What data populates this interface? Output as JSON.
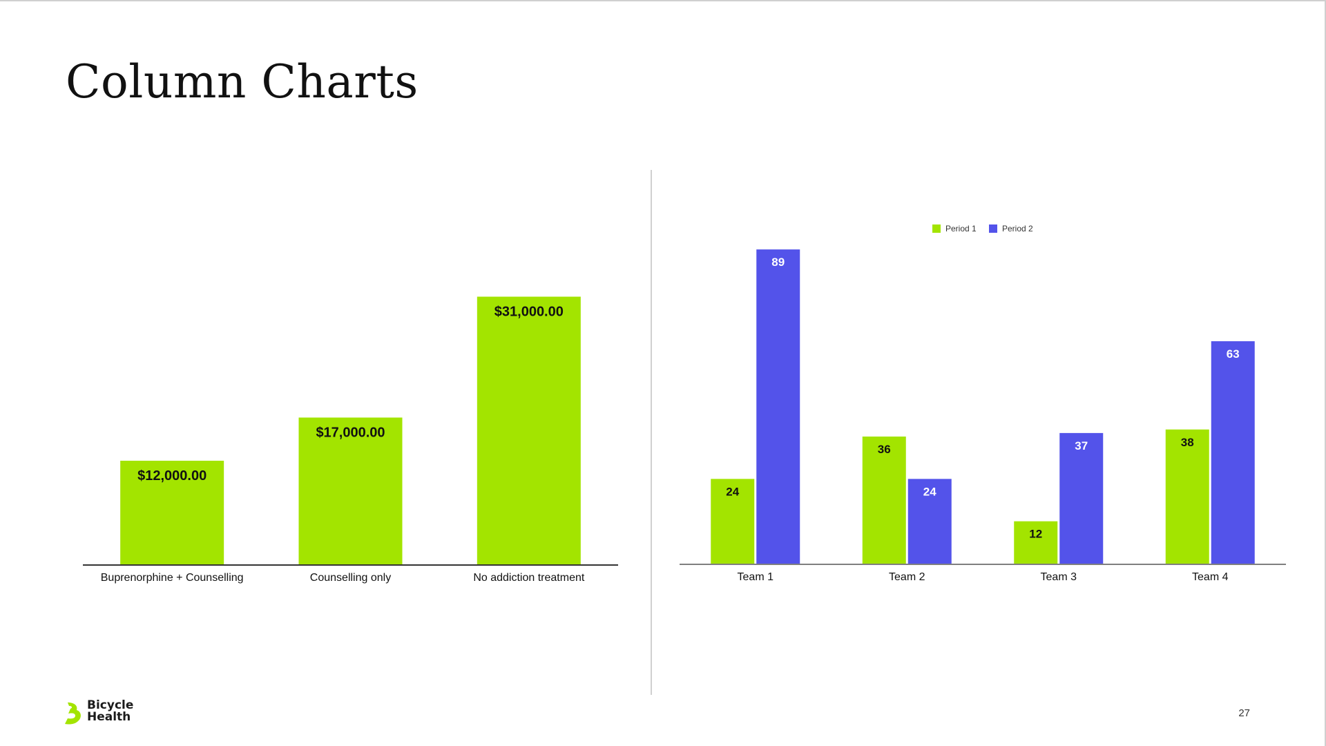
{
  "slide": {
    "title": "Column Charts",
    "page_number": "27"
  },
  "logo": {
    "line1": "Bicycle",
    "line2": "Health"
  },
  "colors": {
    "green": "#a3e400",
    "blue": "#5353ea",
    "axis": "#333333"
  },
  "chart_data": [
    {
      "type": "bar",
      "categories": [
        "Buprenorphine + Counselling",
        "Counselling only",
        "No addiction treatment"
      ],
      "values": [
        12000,
        17000,
        31000
      ],
      "data_labels": [
        "$12,000.00",
        "$17,000.00",
        "$31,000.00"
      ],
      "title": "",
      "xlabel": "",
      "ylabel": "",
      "ylim": [
        0,
        32000
      ],
      "grid": false,
      "legend": "none"
    },
    {
      "type": "bar",
      "categories": [
        "Team 1",
        "Team 2",
        "Team 3",
        "Team 4"
      ],
      "series": [
        {
          "name": "Period 1",
          "values": [
            24,
            36,
            12,
            38
          ]
        },
        {
          "name": "Period 2",
          "values": [
            89,
            24,
            37,
            63
          ]
        }
      ],
      "title": "",
      "xlabel": "",
      "ylabel": "",
      "ylim": [
        0,
        90
      ],
      "grid": false,
      "legend": "top-center"
    }
  ]
}
